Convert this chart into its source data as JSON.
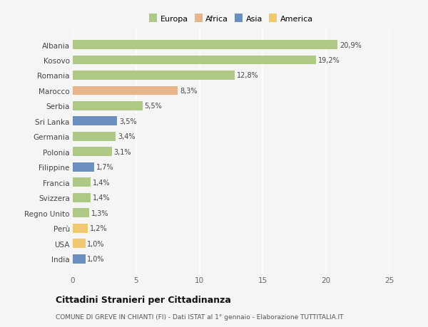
{
  "categories": [
    "Albania",
    "Kosovo",
    "Romania",
    "Marocco",
    "Serbia",
    "Sri Lanka",
    "Germania",
    "Polonia",
    "Filippine",
    "Francia",
    "Svizzera",
    "Regno Unito",
    "Perù",
    "USA",
    "India"
  ],
  "values": [
    20.9,
    19.2,
    12.8,
    8.3,
    5.5,
    3.5,
    3.4,
    3.1,
    1.7,
    1.4,
    1.4,
    1.3,
    1.2,
    1.0,
    1.0
  ],
  "labels": [
    "20,9%",
    "19,2%",
    "12,8%",
    "8,3%",
    "5,5%",
    "3,5%",
    "3,4%",
    "3,1%",
    "1,7%",
    "1,4%",
    "1,4%",
    "1,3%",
    "1,2%",
    "1,0%",
    "1,0%"
  ],
  "colors": [
    "#aec985",
    "#aec985",
    "#aec985",
    "#e8b48a",
    "#aec985",
    "#6b8fbf",
    "#aec985",
    "#aec985",
    "#6b8fbf",
    "#aec985",
    "#aec985",
    "#aec985",
    "#f0c96e",
    "#f0c96e",
    "#6b8fbf"
  ],
  "legend_labels": [
    "Europa",
    "Africa",
    "Asia",
    "America"
  ],
  "legend_colors": [
    "#aec985",
    "#e8b48a",
    "#6b8fbf",
    "#f0c96e"
  ],
  "title": "Cittadini Stranieri per Cittadinanza",
  "subtitle": "COMUNE DI GREVE IN CHIANTI (FI) - Dati ISTAT al 1° gennaio - Elaborazione TUTTITALIA.IT",
  "xlim": [
    0,
    25
  ],
  "xticks": [
    0,
    5,
    10,
    15,
    20,
    25
  ],
  "background_color": "#f5f5f5",
  "grid_color": "#ffffff",
  "bar_height": 0.6
}
